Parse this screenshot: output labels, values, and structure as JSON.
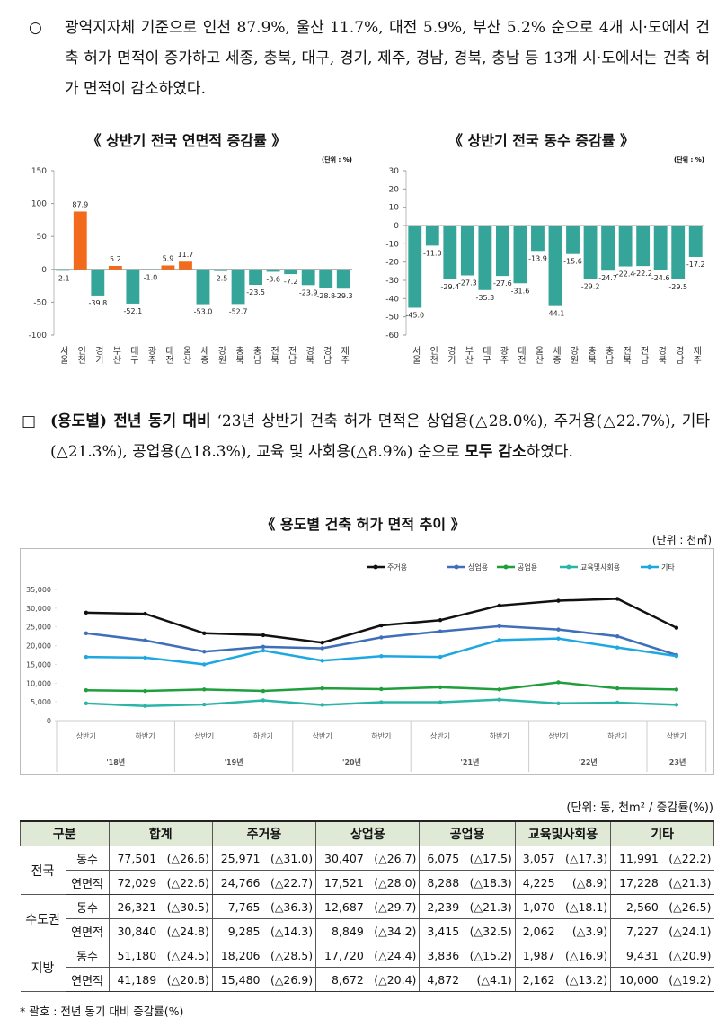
{
  "paragraphs": [
    {
      "marker": "○",
      "text": "광역지자체 기준으로 인천 87.9%, 울산 11.7%, 대전 5.9%, 부산 5.2% 순으로 4개 시·도에서 건축 허가 면적이 증가하고 세종, 충북, 대구, 경기, 제주, 경남, 경북, 충남 등 13개 시·도에서는 건축 허가 면적이 감소하였다."
    },
    {
      "marker": "□",
      "segments": [
        {
          "text": "(용도별) 전년 동기 대비",
          "bold": true
        },
        {
          "text": " ‘23년 상반기 건축 허가 면적은 상업용(△28.0%), 주거용(△22.7%), 기타(△21.3%), 공업용(△18.3%), 교육 및 사회용(△8.9%) 순으로 ",
          "bold": false
        },
        {
          "text": "모두 감소",
          "bold": true
        },
        {
          "text": "하였다.",
          "bold": false
        }
      ]
    }
  ],
  "chart_data": [
    {
      "type": "bar",
      "title": "《 상반기 전국 연면적 증감률 》",
      "unit": "(단위 : %)",
      "categories": [
        "서울",
        "인천",
        "경기",
        "부산",
        "대구",
        "광주",
        "대전",
        "울산",
        "세종",
        "강원",
        "충북",
        "충남",
        "전북",
        "전남",
        "경북",
        "경남",
        "제주"
      ],
      "values": [
        -2.1,
        87.9,
        -39.8,
        5.2,
        -52.1,
        -1.0,
        5.9,
        11.7,
        -53.0,
        -2.5,
        -52.7,
        -23.5,
        -3.6,
        -7.2,
        -23.9,
        -28.8,
        -29.3
      ],
      "value_labels": [
        "-2.1",
        "87.9",
        "-39.8",
        "5.2",
        "-52.1",
        "-1.0",
        "5.9",
        "11.7",
        "-53.0",
        "-2.5",
        "-52.7",
        "-23.5",
        "-3.6",
        "-7.2",
        "-23.9",
        "-28.8",
        "-29.3"
      ],
      "positive_color": "#f26b1d",
      "negative_color": "#35a59a",
      "ylim": [
        -100,
        150
      ],
      "yticks": [
        -100,
        -50,
        0,
        50,
        100,
        150
      ]
    },
    {
      "type": "bar",
      "title": "《 상반기 전국 동수 증감률 》",
      "unit": "(단위 : %)",
      "categories": [
        "서울",
        "인천",
        "경기",
        "부산",
        "대구",
        "광주",
        "대전",
        "울산",
        "세종",
        "강원",
        "충북",
        "충남",
        "전북",
        "전남",
        "경북",
        "경남",
        "제주"
      ],
      "values": [
        -45.0,
        -11.0,
        -29.4,
        -27.3,
        -35.3,
        -27.6,
        -31.6,
        -13.9,
        -44.1,
        -15.6,
        -29.2,
        -24.7,
        -22.4,
        -22.2,
        -24.6,
        -29.5,
        -17.2
      ],
      "value_labels": [
        "-45.0",
        "-11.0",
        "-29.4",
        "-27.3",
        "-35.3",
        "-27.6",
        "-31.6",
        "-13.9",
        "-44.1",
        "-15.6",
        "-29.2",
        "-24.7",
        "-22.4",
        "-22.2",
        "-24.6",
        "-29.5",
        "-17.2"
      ],
      "positive_color": "#f26b1d",
      "negative_color": "#35a59a",
      "ylim": [
        -60,
        30
      ],
      "yticks": [
        -60,
        -50,
        -40,
        -30,
        -20,
        -10,
        0,
        10,
        20,
        30
      ]
    },
    {
      "type": "line",
      "title": "《 용도별 건축 허가 면적 추이 》",
      "unit": "(단위 : 천㎡)",
      "categories": [
        "상반기",
        "하반기",
        "상반기",
        "하반기",
        "상반기",
        "하반기",
        "상반기",
        "하반기",
        "상반기",
        "하반기",
        "상반기"
      ],
      "groups": [
        "'18년",
        "'19년",
        "'20년",
        "'21년",
        "'22년",
        "'23년"
      ],
      "series": [
        {
          "name": "주거용",
          "color": "#111111",
          "values": [
            28800,
            28500,
            23300,
            22800,
            20800,
            25400,
            26800,
            30700,
            32000,
            32500,
            24766
          ]
        },
        {
          "name": "상업용",
          "color": "#3e6fb8",
          "values": [
            23300,
            21400,
            18400,
            19700,
            19300,
            22200,
            23800,
            25200,
            24300,
            22500,
            17521
          ]
        },
        {
          "name": "공업용",
          "color": "#1f9e3c",
          "values": [
            8100,
            7900,
            8300,
            7900,
            8600,
            8400,
            8900,
            8300,
            10200,
            8600,
            8288
          ]
        },
        {
          "name": "교육및사회용",
          "color": "#2bb5a6",
          "values": [
            4600,
            3900,
            4300,
            5400,
            4200,
            4900,
            4900,
            5600,
            4600,
            4800,
            4225
          ]
        },
        {
          "name": "기타",
          "color": "#1ea8e2",
          "values": [
            17000,
            16800,
            15000,
            18700,
            16000,
            17200,
            17000,
            21500,
            21900,
            19500,
            17228
          ]
        }
      ],
      "ylim": [
        0,
        35000
      ],
      "yticks": [
        0,
        {
          "value": 5000,
          "label": "5,000"
        },
        {
          "value": 10000,
          "label": "10,000"
        },
        {
          "value": 15000,
          "label": "15,000"
        },
        {
          "value": 20000,
          "label": "20,000"
        },
        {
          "value": 25000,
          "label": "25,000"
        },
        {
          "value": 30000,
          "label": "30,000"
        },
        {
          "value": 35000,
          "label": "35,000"
        }
      ]
    }
  ],
  "table": {
    "unit": "(단위: 동, 천m² / 증감률(%))",
    "header": [
      "구분",
      "합계",
      "주거용",
      "상업용",
      "공업용",
      "교육및사회용",
      "기타"
    ],
    "groups": [
      {
        "name": "전국",
        "rows": [
          {
            "label": "동수",
            "cells": [
              "77,501",
              "(△26.6)",
              "25,971",
              "(△31.0)",
              "30,407",
              "(△26.7)",
              "6,075",
              "(△17.5)",
              "3,057",
              "(△17.3)",
              "11,991",
              "(△22.2)"
            ]
          },
          {
            "label": "연면적",
            "cells": [
              "72,029",
              "(△22.6)",
              "24,766",
              "(△22.7)",
              "17,521",
              "(△28.0)",
              "8,288",
              "(△18.3)",
              "4,225",
              "(△8.9)",
              "17,228",
              "(△21.3)"
            ]
          }
        ]
      },
      {
        "name": "수도권",
        "rows": [
          {
            "label": "동수",
            "cells": [
              "26,321",
              "(△30.5)",
              "7,765",
              "(△36.3)",
              "12,687",
              "(△29.7)",
              "2,239",
              "(△21.3)",
              "1,070",
              "(△18.1)",
              "2,560",
              "(△26.5)"
            ]
          },
          {
            "label": "연면적",
            "cells": [
              "30,840",
              "(△24.8)",
              "9,285",
              "(△14.3)",
              "8,849",
              "(△34.2)",
              "3,415",
              "(△32.5)",
              "2,062",
              "(△3.9)",
              "7,227",
              "(△24.1)"
            ]
          }
        ]
      },
      {
        "name": "지방",
        "rows": [
          {
            "label": "동수",
            "cells": [
              "51,180",
              "(△24.5)",
              "18,206",
              "(△28.5)",
              "17,720",
              "(△24.4)",
              "3,836",
              "(△15.2)",
              "1,987",
              "(△16.9)",
              "9,431",
              "(△20.9)"
            ]
          },
          {
            "label": "연면적",
            "cells": [
              "41,189",
              "(△20.8)",
              "15,480",
              "(△26.9)",
              "8,672",
              "(△20.4)",
              "4,872",
              "(△4.1)",
              "2,162",
              "(△13.2)",
              "10,000",
              "(△19.2)"
            ]
          }
        ]
      }
    ]
  },
  "footnote": "* 괄호 : 전년 동기 대비 증감률(%)"
}
